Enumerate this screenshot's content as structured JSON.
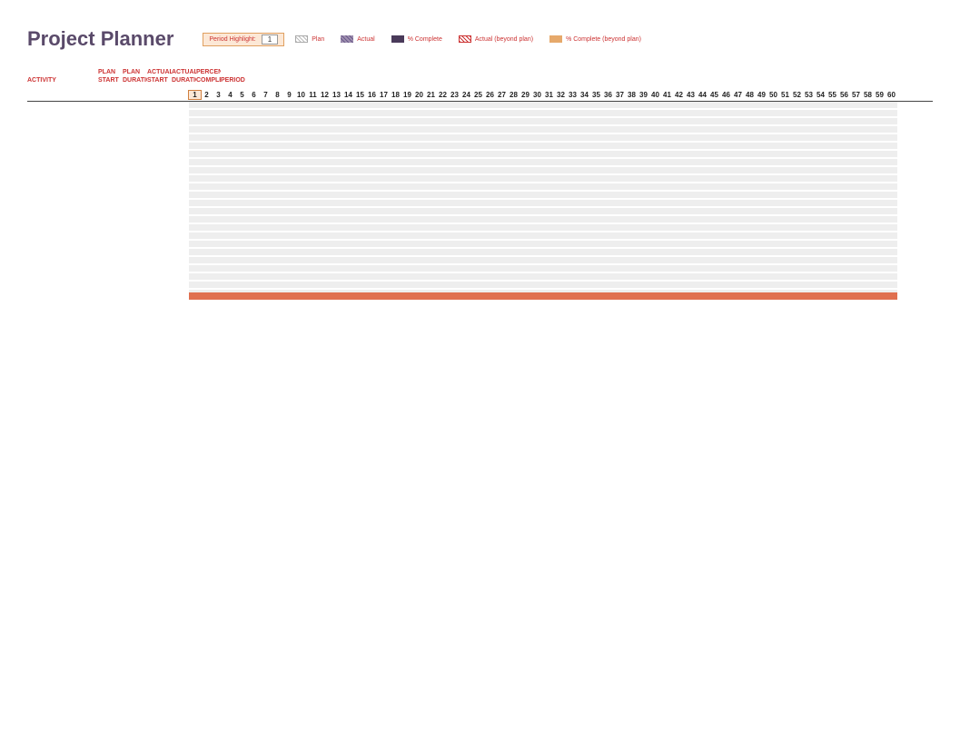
{
  "title": "Project Planner",
  "period_highlight": {
    "label": "Period Highlight:",
    "value": "1"
  },
  "legend": {
    "plan": "Plan",
    "actual": "Actual",
    "pct_complete": "% Complete",
    "actual_beyond": "Actual (beyond plan)",
    "pct_beyond": "% Complete (beyond plan)"
  },
  "columns": {
    "activity": "ACTIVITY",
    "row1": [
      "PLAN",
      "PLAN",
      "ACTUAL",
      "ACTUAL",
      "PERCENT"
    ],
    "row2": [
      "START",
      "DURATION",
      "START",
      "DURATION",
      "COMPLETE",
      "PERIODS"
    ]
  },
  "periods": {
    "start": 1,
    "end": 60,
    "highlight": 1
  },
  "colors": {
    "title": "#5a4a6a",
    "accent_bg": "#fce8d6",
    "accent_border": "#e0a060",
    "label_red": "#cc3333",
    "grid_stripe": "#eeeeee",
    "bottom_bar": "#e07050",
    "pct_fill": "#4a3a5a",
    "pct_beyond": "#e6a96b"
  }
}
